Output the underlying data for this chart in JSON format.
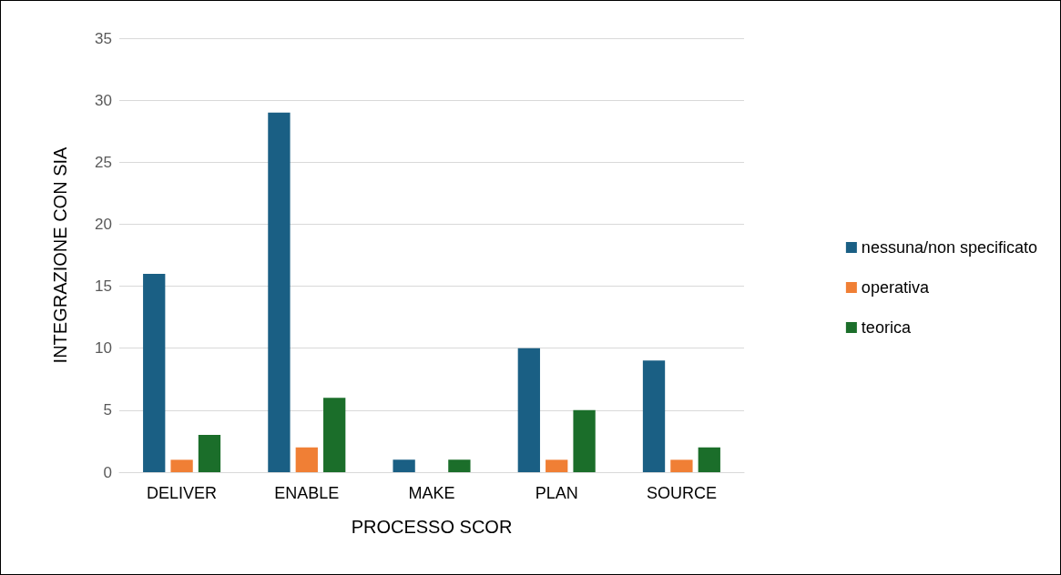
{
  "chart_data": {
    "type": "bar",
    "xlabel": "PROCESSO SCOR",
    "ylabel": "INTEGRAZIONE CON SIA",
    "categories": [
      "DELIVER",
      "ENABLE",
      "MAKE",
      "PLAN",
      "SOURCE"
    ],
    "series": [
      {
        "name": "nessuna/non specificato",
        "color": "#1a5f84",
        "values": [
          16,
          29,
          1,
          10,
          9
        ]
      },
      {
        "name": "operativa",
        "color": "#f07f35",
        "values": [
          1,
          2,
          0,
          1,
          1
        ]
      },
      {
        "name": "teorica",
        "color": "#1b6e2a",
        "values": [
          3,
          6,
          1,
          5,
          2
        ]
      }
    ],
    "ylim": [
      0,
      35
    ],
    "yticks": [
      0,
      5,
      10,
      15,
      20,
      25,
      30,
      35
    ],
    "grid": "y",
    "legend": "right"
  }
}
